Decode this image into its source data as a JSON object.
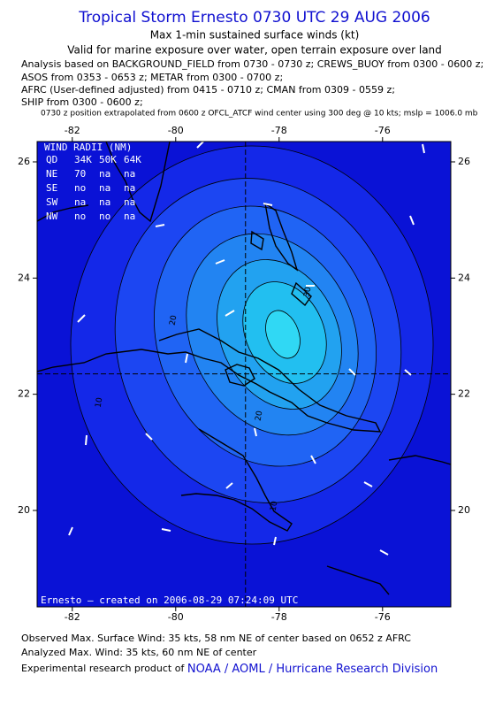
{
  "header": {
    "title": "Tropical Storm Ernesto 0730 UTC 29 AUG 2006",
    "subtitle": "Max 1-min sustained surface winds (kt)",
    "valid": "Valid for marine exposure over water, open terrain exposure over land",
    "analysis_lines": [
      "Analysis based on  BACKGROUND_FIELD from 0730 - 0730 z;  CREWS_BUOY from 0300 - 0600 z;",
      "ASOS from 0353 - 0653 z;  METAR from 0300 - 0700 z;",
      "AFRC (User-defined adjusted) from 0415 - 0710 z;  CMAN from 0309 - 0559 z;",
      "SHIP from 0300 - 0600 z;"
    ],
    "note": "0730 z position extrapolated from 0600 z OFCL_ATCF wind center using 300 deg @ 10 kts; mslp = 1006.0 mb"
  },
  "map": {
    "xlim": [
      -82.68,
      -74.68
    ],
    "ylim": [
      18.34,
      26.35
    ],
    "xticks": [
      -82,
      -80,
      -78,
      -76
    ],
    "yticks": [
      20,
      22,
      24,
      26
    ],
    "center": [
      -78.65,
      22.35
    ],
    "wind_radii": {
      "title": "WIND RADII (NM)",
      "header": [
        "QD",
        "34K",
        "50K",
        "64K"
      ],
      "rows": [
        [
          "NE",
          "70",
          "na",
          "na"
        ],
        [
          "SE",
          "no",
          "na",
          "na"
        ],
        [
          "SW",
          "na",
          "na",
          "na"
        ],
        [
          "NW",
          "no",
          "no",
          "na"
        ]
      ]
    },
    "contour_labels": [
      "20",
      "20",
      "30",
      "10",
      "10"
    ],
    "credit": "Ernesto — created on 2006-08-29 07:24:09 UTC"
  },
  "footer": {
    "observed": "Observed Max. Surface Wind: 35 kts, 58 nm NE of center based on 0652 z AFRC",
    "analyzed": "Analyzed Max. Wind: 35 kts, 60 nm NE of center",
    "credit_prefix": "Experimental research product of",
    "credit_link": "NOAA / AOML / Hurricane Research Division"
  }
}
